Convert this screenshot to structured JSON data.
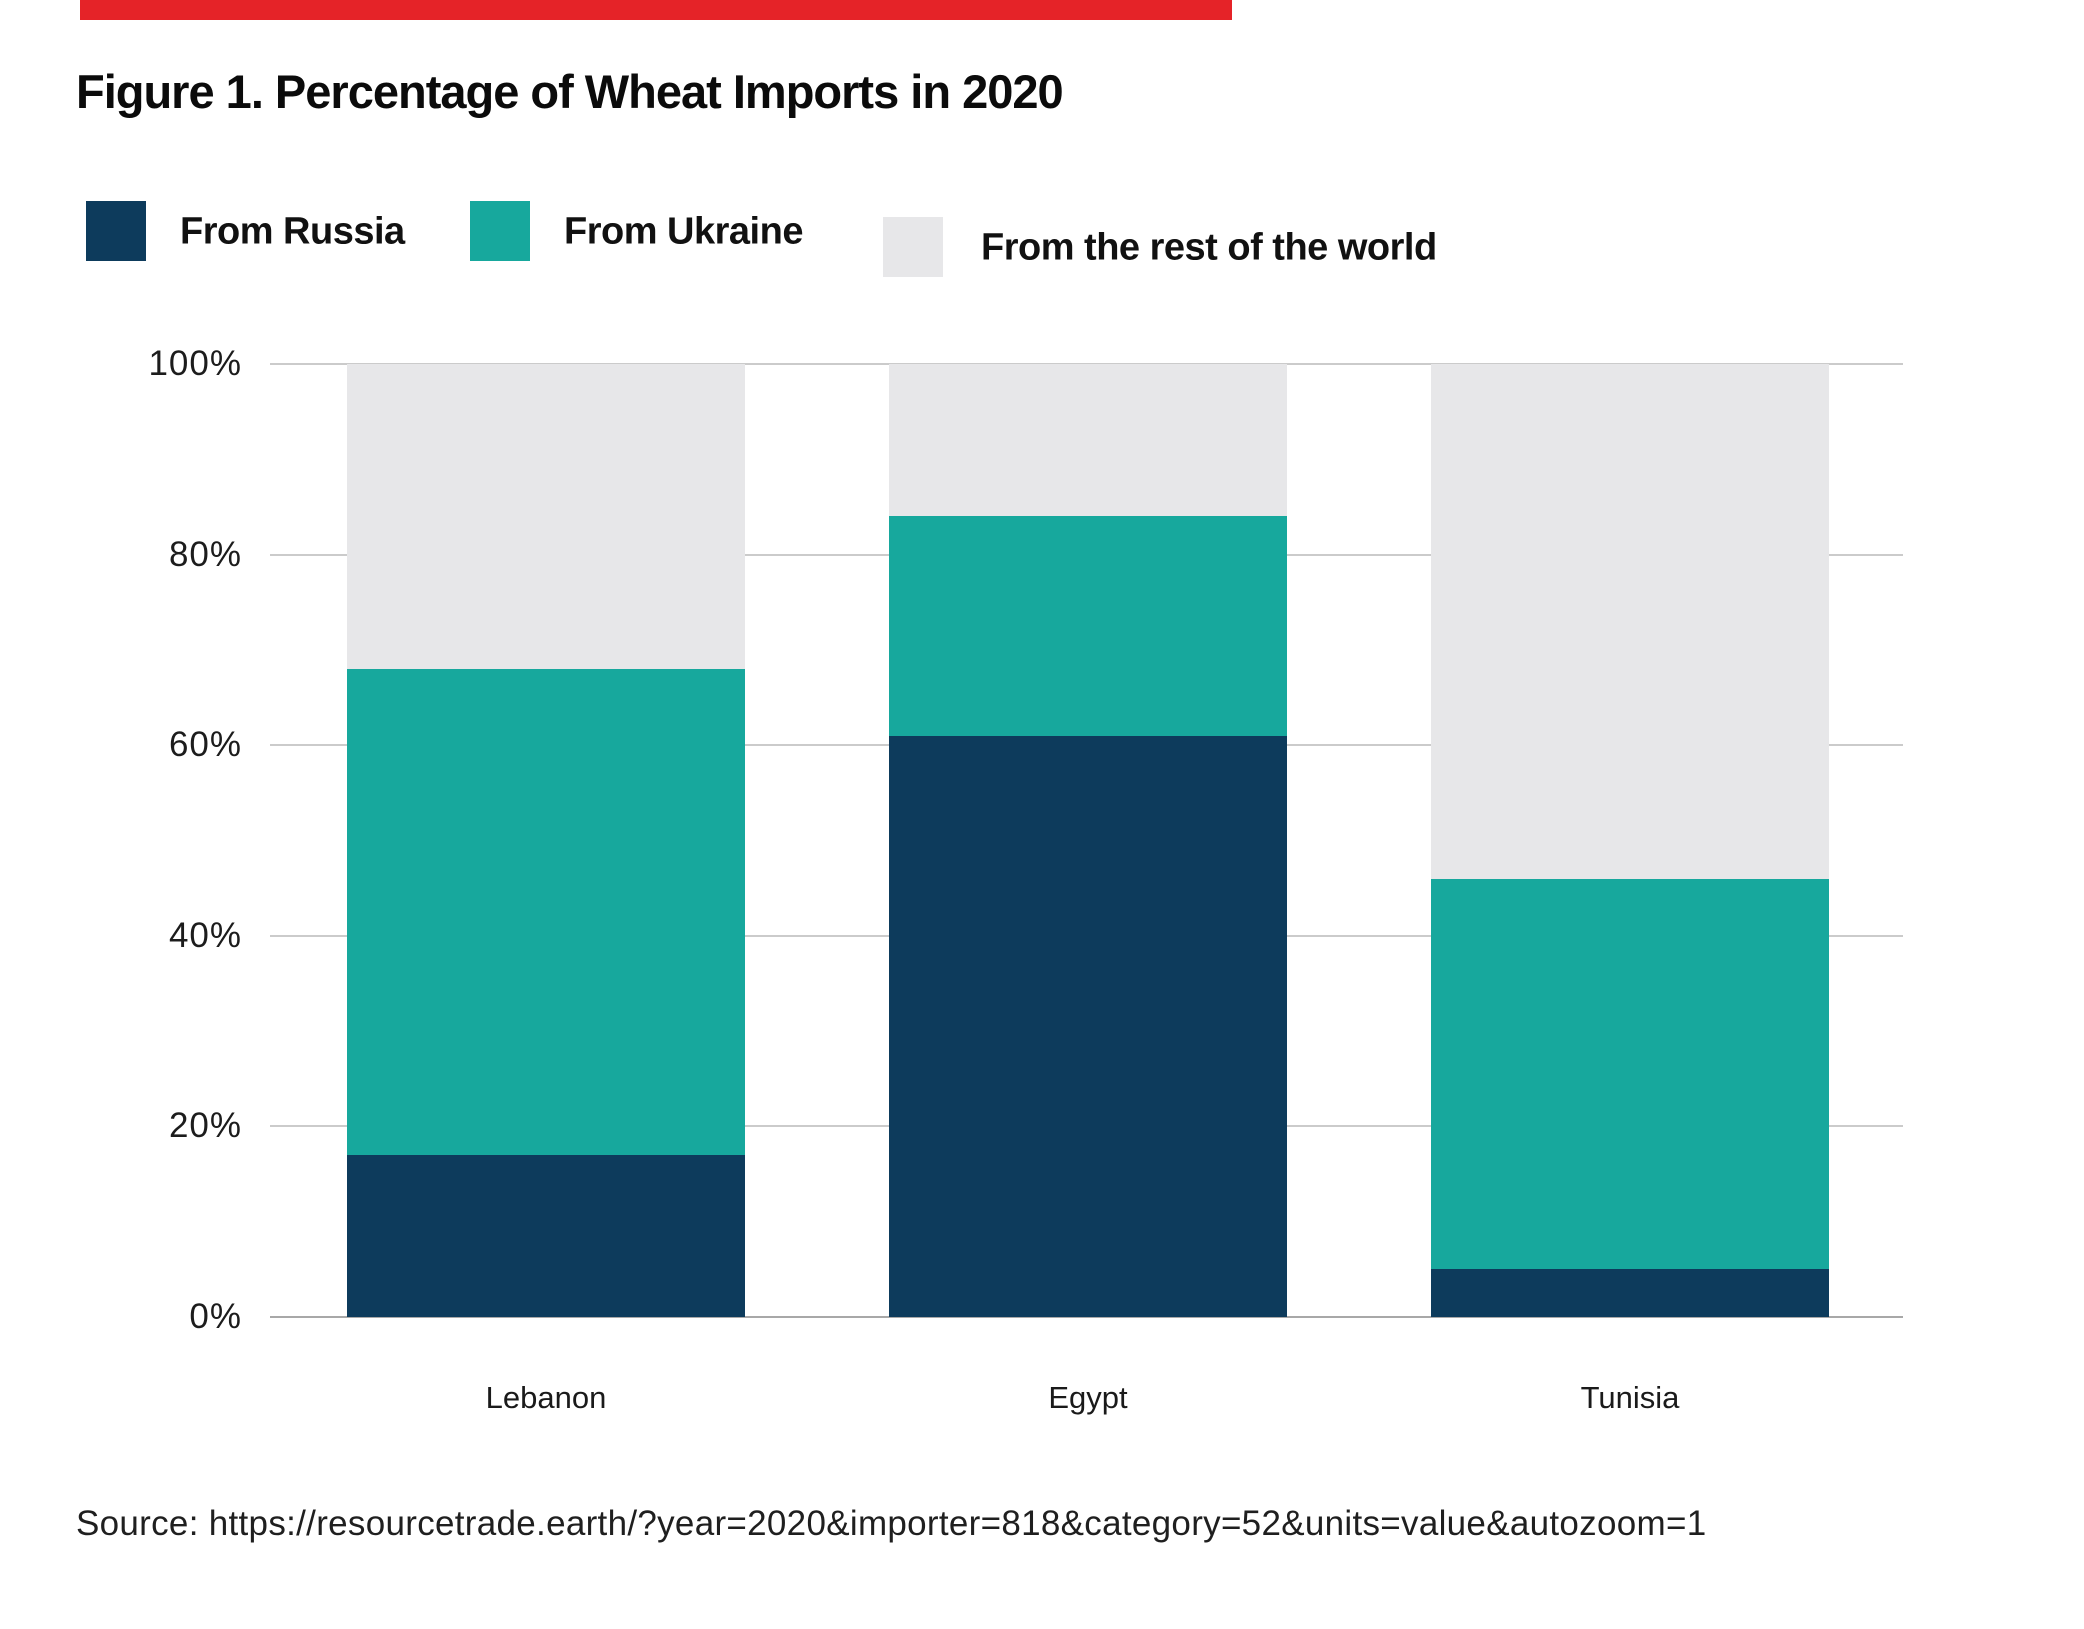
{
  "figure": {
    "title": "Figure 1. Percentage of Wheat Imports in 2020",
    "source": "Source: https://resourcetrade.earth/?year=2020&importer=818&category=52&units=value&autozoom=1",
    "accent_bar_color": "#e52328",
    "background": "#ffffff"
  },
  "legend": {
    "items": [
      {
        "label": "From Russia",
        "color": "#0d3b5c",
        "icon": "russia-color-swatch"
      },
      {
        "label": "From Ukraine",
        "color": "#17a89d",
        "icon": "ukraine-color-swatch"
      },
      {
        "label": "From the rest of the world",
        "color": "#e7e7e9",
        "icon": "rest-of-world-color-swatch"
      }
    ]
  },
  "chart_data": {
    "type": "bar",
    "stacked": true,
    "title": "Figure 1. Percentage of Wheat Imports in 2020",
    "categories": [
      "Lebanon",
      "Egypt",
      "Tunisia"
    ],
    "series": [
      {
        "name": "From Russia",
        "color": "#0d3b5c",
        "values": [
          17,
          61,
          5
        ]
      },
      {
        "name": "From Ukraine",
        "color": "#17a89d",
        "values": [
          51,
          23,
          41
        ]
      },
      {
        "name": "From the rest of the world",
        "color": "#e7e7e9",
        "values": [
          32,
          16,
          54
        ]
      }
    ],
    "xlabel": "",
    "ylabel": "",
    "ylim": [
      0,
      100
    ],
    "yticks": [
      {
        "value": 0,
        "label": "0%"
      },
      {
        "value": 20,
        "label": "20%"
      },
      {
        "value": 40,
        "label": "40%"
      },
      {
        "value": 60,
        "label": "60%"
      },
      {
        "value": 80,
        "label": "80%"
      },
      {
        "value": 100,
        "label": "100%"
      }
    ],
    "grid": true,
    "gridline_color": "#cbcbcb",
    "axis_line_color": "#a8a8a8",
    "legend_position": "top"
  }
}
